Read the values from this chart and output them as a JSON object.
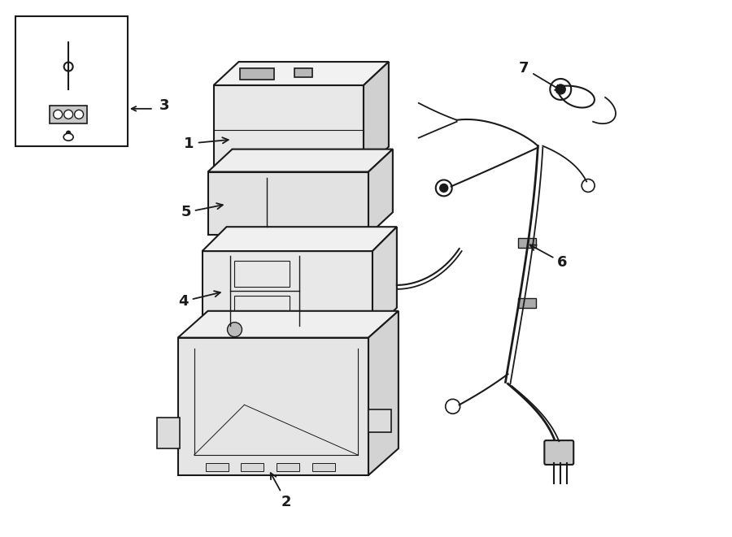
{
  "bg_color": "#ffffff",
  "line_color": "#1a1a1a",
  "fig_width": 9.0,
  "fig_height": 6.61
}
